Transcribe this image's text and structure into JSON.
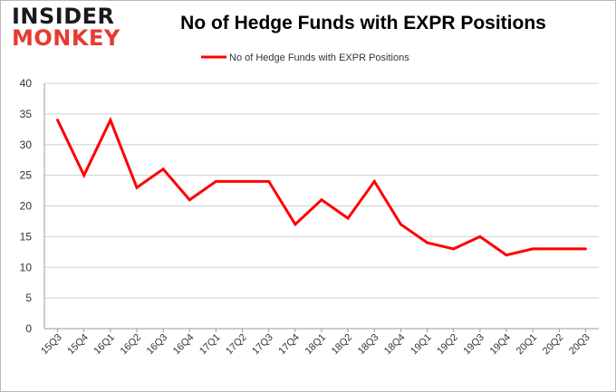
{
  "logo": {
    "line1": "INSIDER",
    "line2": "MONKEY"
  },
  "chart_data": {
    "type": "line",
    "title": "No of Hedge Funds with EXPR Positions",
    "xlabel": "",
    "ylabel": "",
    "categories": [
      "15Q3",
      "15Q4",
      "16Q1",
      "16Q2",
      "16Q3",
      "16Q4",
      "17Q1",
      "17Q2",
      "17Q3",
      "17Q4",
      "18Q1",
      "18Q2",
      "18Q3",
      "18Q4",
      "19Q1",
      "19Q2",
      "19Q3",
      "19Q4",
      "20Q1",
      "20Q2",
      "20Q3"
    ],
    "series": [
      {
        "name": "No of Hedge Funds with EXPR Positions",
        "values": [
          34,
          25,
          34,
          23,
          26,
          21,
          24,
          24,
          24,
          17,
          21,
          18,
          24,
          17,
          14,
          13,
          15,
          12,
          13,
          13,
          13
        ],
        "color": "#ff0000"
      }
    ],
    "ylim": [
      0,
      40
    ],
    "yticks": [
      0,
      5,
      10,
      15,
      20,
      25,
      30,
      35,
      40
    ],
    "grid": true,
    "legend_position": "top-center"
  }
}
